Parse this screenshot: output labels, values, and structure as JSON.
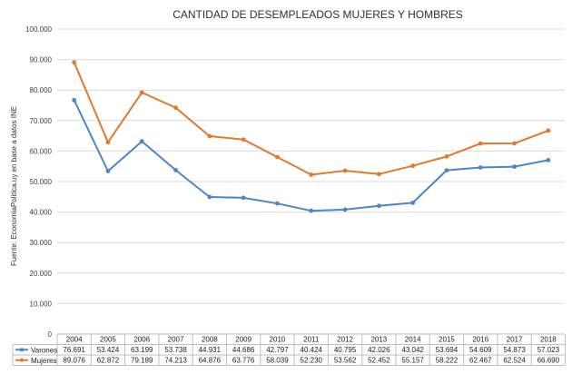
{
  "chart_data": {
    "type": "line",
    "title": "CANTIDAD DE DESEMPLEADOS MUJERES Y HOMBRES",
    "source_label": "Fuente: EconomiaPolitica.uy en base a datos INE",
    "ylim": [
      0,
      100000
    ],
    "y_tick_labels": [
      "0",
      "10.000",
      "20.000",
      "30.000",
      "40.000",
      "50.000",
      "60.000",
      "70.000",
      "80.000",
      "90.000",
      "100.000"
    ],
    "categories": [
      "2004",
      "2005",
      "2006",
      "2007",
      "2008",
      "2009",
      "2010",
      "2011",
      "2012",
      "2013",
      "2014",
      "2015",
      "2016",
      "2017",
      "2018"
    ],
    "grid": true,
    "legend": "data-table",
    "series": [
      {
        "name": "Varones",
        "color": "#4a87c5",
        "values": [
          76691,
          53424,
          63199,
          53738,
          44931,
          44686,
          42797,
          40424,
          40795,
          42026,
          43042,
          53694,
          54609,
          54873,
          57023
        ],
        "labels": [
          "76.691",
          "53.424",
          "63.199",
          "53.738",
          "44.931",
          "44.686",
          "42.797",
          "40.424",
          "40.795",
          "42.026",
          "43.042",
          "53.694",
          "54.609",
          "54.873",
          "57.023"
        ]
      },
      {
        "name": "Mujeres",
        "color": "#e07a2e",
        "values": [
          89076,
          62872,
          79189,
          74213,
          64876,
          63776,
          58039,
          52230,
          53562,
          52452,
          55157,
          58222,
          62467,
          62524,
          66690
        ],
        "labels": [
          "89.076",
          "62.872",
          "79.189",
          "74.213",
          "64.876",
          "63.776",
          "58.039",
          "52.230",
          "53.562",
          "52.452",
          "55.157",
          "58.222",
          "62.467",
          "62.524",
          "66.690"
        ]
      }
    ]
  }
}
